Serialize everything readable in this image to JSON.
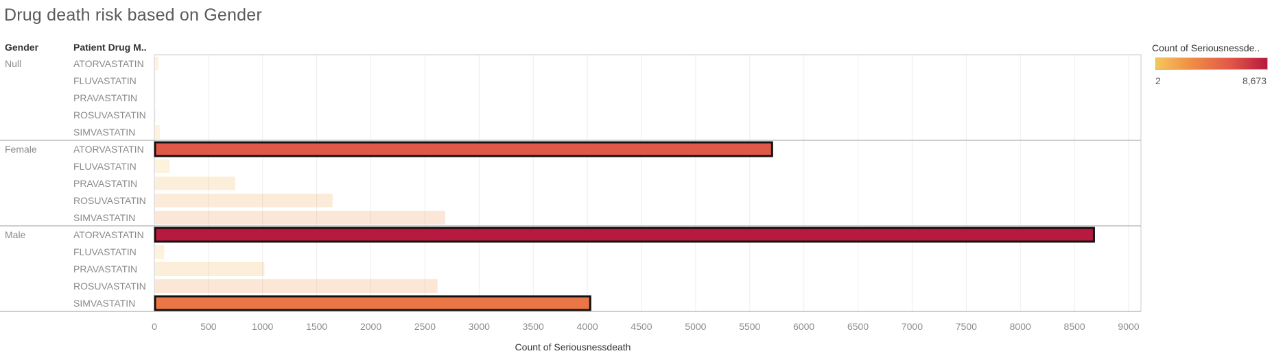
{
  "title": "Drug death risk based on Gender",
  "headers": {
    "gender": "Gender",
    "drug": "Patient Drug M.."
  },
  "legend": {
    "title": "Count of Seriousnessde..",
    "min_label": "2",
    "max_label": "8,673",
    "colors": [
      "#f4c65a",
      "#f08a45",
      "#e05848",
      "#b8193e"
    ]
  },
  "chart_data": {
    "type": "bar",
    "orientation": "horizontal",
    "xlabel": "Count of Seriousnessdeath",
    "xlim": [
      0,
      9000
    ],
    "xticks": [
      0,
      500,
      1000,
      1500,
      2000,
      2500,
      3000,
      3500,
      4000,
      4500,
      5000,
      5500,
      6000,
      6500,
      7000,
      7500,
      8000,
      8500,
      9000
    ],
    "grid": true,
    "groups": [
      {
        "gender": "Null",
        "bars": [
          {
            "drug": "ATORVASTATIN",
            "value": 30
          },
          {
            "drug": "FLUVASTATIN",
            "value": 2
          },
          {
            "drug": "PRAVASTATIN",
            "value": 3
          },
          {
            "drug": "ROSUVASTATIN",
            "value": 5
          },
          {
            "drug": "SIMVASTATIN",
            "value": 45
          }
        ]
      },
      {
        "gender": "Female",
        "bars": [
          {
            "drug": "ATORVASTATIN",
            "value": 5700
          },
          {
            "drug": "FLUVASTATIN",
            "value": 135
          },
          {
            "drug": "PRAVASTATIN",
            "value": 740
          },
          {
            "drug": "ROSUVASTATIN",
            "value": 1640
          },
          {
            "drug": "SIMVASTATIN",
            "value": 2680
          }
        ]
      },
      {
        "gender": "Male",
        "bars": [
          {
            "drug": "ATORVASTATIN",
            "value": 8673
          },
          {
            "drug": "FLUVASTATIN",
            "value": 85
          },
          {
            "drug": "PRAVASTATIN",
            "value": 1010
          },
          {
            "drug": "ROSUVASTATIN",
            "value": 2610
          },
          {
            "drug": "SIMVASTATIN",
            "value": 4020
          }
        ]
      }
    ],
    "highlighted": [
      "Female|ATORVASTATIN",
      "Male|ATORVASTATIN",
      "Male|SIMVASTATIN"
    ]
  }
}
